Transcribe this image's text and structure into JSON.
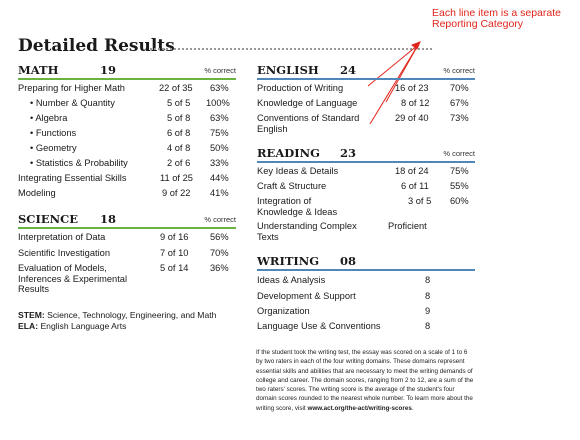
{
  "title": "Detailed Results",
  "annotation": "Each line item is a separate Reporting Category",
  "colors": {
    "annotation": "#e0251b",
    "math_rule": "#69b342",
    "english_rule": "#4f88b8"
  },
  "percent_header": "% correct",
  "math": {
    "name": "MATH",
    "score": "19",
    "rows": [
      {
        "label": "Preparing for Higher Math",
        "score": "22 of 35",
        "pct": "63%"
      },
      {
        "label": "• Number & Quantity",
        "score": "5 of 5",
        "pct": "100%"
      },
      {
        "label": "• Algebra",
        "score": "5 of 8",
        "pct": "63%"
      },
      {
        "label": "• Functions",
        "score": "6 of 8",
        "pct": "75%"
      },
      {
        "label": "• Geometry",
        "score": "4 of 8",
        "pct": "50%"
      },
      {
        "label": "• Statistics & Probability",
        "score": "2 of 6",
        "pct": "33%"
      },
      {
        "label": "Integrating Essential Skills",
        "score": "11 of 25",
        "pct": "44%"
      },
      {
        "label": "Modeling",
        "score": "9 of 22",
        "pct": "41%"
      }
    ]
  },
  "science": {
    "name": "SCIENCE",
    "score": "18",
    "rows": [
      {
        "label": "Interpretation of Data",
        "score": "9 of 16",
        "pct": "56%"
      },
      {
        "label": "Scientific Investigation",
        "score": "7 of 10",
        "pct": "70%"
      },
      {
        "label": "Evaluation of Models, Inferences & Experimental Results",
        "score": "5 of 14",
        "pct": "36%"
      }
    ]
  },
  "legend": {
    "stem_abbr": "STEM:",
    "stem_text": "Science, Technology, Engineering, and Math",
    "ela_abbr": "ELA:",
    "ela_text": "English Language Arts"
  },
  "english": {
    "name": "ENGLISH",
    "score": "24",
    "rows": [
      {
        "label": "Production of Writing",
        "score": "16 of 23",
        "pct": "70%"
      },
      {
        "label": "Knowledge of Language",
        "score": "8 of 12",
        "pct": "67%"
      },
      {
        "label": "Conventions of Standard English",
        "score": "29 of 40",
        "pct": "73%"
      }
    ]
  },
  "reading": {
    "name": "READING",
    "score": "23",
    "rows": [
      {
        "label": "Key Ideas & Details",
        "score": "18 of 24",
        "pct": "75%"
      },
      {
        "label": "Craft & Structure",
        "score": "6 of 11",
        "pct": "55%"
      },
      {
        "label": "Integration of Knowledge & Ideas",
        "score": "3 of 5",
        "pct": "60%"
      },
      {
        "label": "Understanding Complex Texts",
        "score": "Proficient",
        "pct": ""
      }
    ]
  },
  "writing": {
    "name": "WRITING",
    "score": "08",
    "rows": [
      {
        "label": "Ideas & Analysis",
        "score": "8"
      },
      {
        "label": "Development & Support",
        "score": "8"
      },
      {
        "label": "Organization",
        "score": "9"
      },
      {
        "label": "Language Use & Conventions",
        "score": "8"
      }
    ]
  },
  "writing_note": {
    "text": "If the student took the writing test, the essay was scored on a scale of 1 to 6 by two raters in each of the four writing domains. These domains represent essential skills and abilities that are necessary to meet the writing demands of college and career. The domain scores, ranging from 2 to 12, are a sum of the two raters' scores. The writing score is the average of the student's four domain scores rounded to the nearest whole number. To learn more about the writing score, visit ",
    "link": "www.act.org/the-act/writing-scores",
    "end": "."
  }
}
